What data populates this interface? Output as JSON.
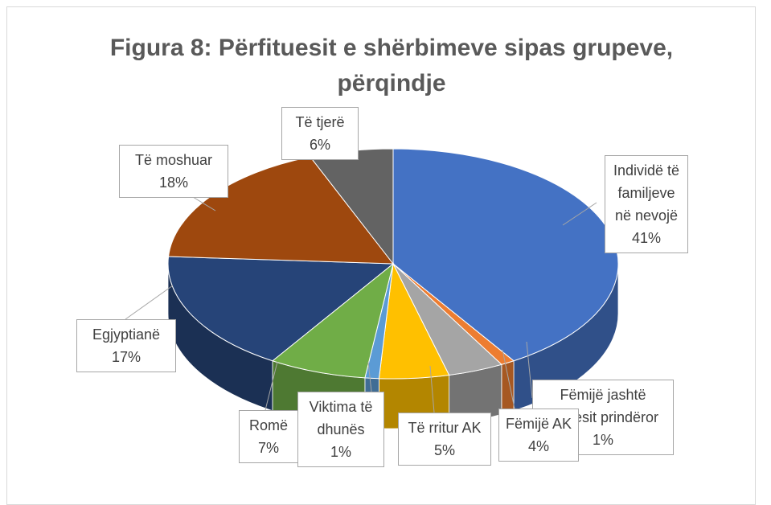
{
  "chart_data": {
    "type": "pie3d",
    "title": "Figura 8: Përfituesit e shërbimeve sipas grupeve, përqindje",
    "categories": [
      "Individë të familjeve në nevojë",
      "Fëmijë jashtë kujdesit prindëror",
      "Fëmijë AK",
      "Të rritur AK",
      "Viktima të dhunës",
      "Romë",
      "Egjyptianë",
      "Të moshuar",
      "Të tjerë"
    ],
    "values": [
      41,
      1,
      4,
      5,
      1,
      7,
      17,
      18,
      6
    ],
    "value_labels": [
      "41%",
      "1%",
      "4%",
      "5%",
      "1%",
      "7%",
      "17%",
      "18%",
      "6%"
    ],
    "colors": [
      "#4472c4",
      "#ed7d31",
      "#a5a5a5",
      "#ffc000",
      "#5b9bd5",
      "#70ad47",
      "#264478",
      "#9e480e",
      "#636363"
    ]
  }
}
